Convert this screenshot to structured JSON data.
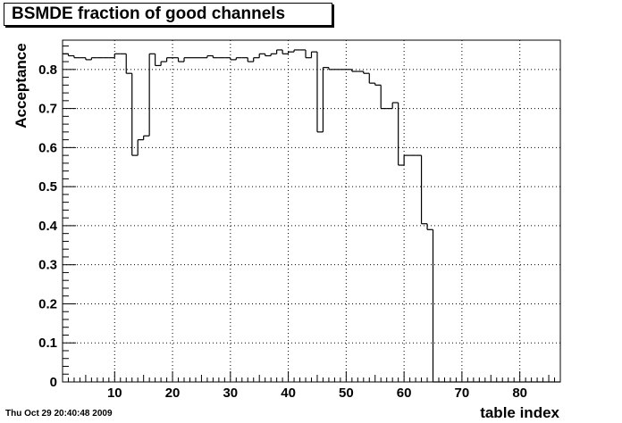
{
  "chart_data": {
    "type": "step",
    "title": "BSMDE fraction of good channels",
    "xlabel": "table index",
    "ylabel": "Acceptance",
    "xlim": [
      1,
      87
    ],
    "ylim": [
      0,
      0.875
    ],
    "xticks": [
      10,
      20,
      30,
      40,
      50,
      60,
      70,
      80
    ],
    "yticks": [
      0,
      0.1,
      0.2,
      0.3,
      0.4,
      0.5,
      0.6,
      0.7,
      0.8
    ],
    "ytick_labels": [
      "0",
      "0.1",
      "0.2",
      "0.3",
      "0.4",
      "0.5",
      "0.6",
      "0.7",
      "0.8"
    ],
    "grid": true,
    "bins": [
      {
        "x": 1,
        "y": 0.84
      },
      {
        "x": 2,
        "y": 0.835
      },
      {
        "x": 3,
        "y": 0.83
      },
      {
        "x": 4,
        "y": 0.83
      },
      {
        "x": 5,
        "y": 0.825
      },
      {
        "x": 6,
        "y": 0.83
      },
      {
        "x": 7,
        "y": 0.83
      },
      {
        "x": 8,
        "y": 0.83
      },
      {
        "x": 9,
        "y": 0.83
      },
      {
        "x": 10,
        "y": 0.84
      },
      {
        "x": 11,
        "y": 0.84
      },
      {
        "x": 12,
        "y": 0.79
      },
      {
        "x": 13,
        "y": 0.58
      },
      {
        "x": 14,
        "y": 0.62
      },
      {
        "x": 15,
        "y": 0.63
      },
      {
        "x": 16,
        "y": 0.84
      },
      {
        "x": 17,
        "y": 0.81
      },
      {
        "x": 18,
        "y": 0.82
      },
      {
        "x": 19,
        "y": 0.83
      },
      {
        "x": 20,
        "y": 0.83
      },
      {
        "x": 21,
        "y": 0.82
      },
      {
        "x": 22,
        "y": 0.83
      },
      {
        "x": 23,
        "y": 0.83
      },
      {
        "x": 24,
        "y": 0.83
      },
      {
        "x": 25,
        "y": 0.83
      },
      {
        "x": 26,
        "y": 0.835
      },
      {
        "x": 27,
        "y": 0.83
      },
      {
        "x": 28,
        "y": 0.83
      },
      {
        "x": 29,
        "y": 0.83
      },
      {
        "x": 30,
        "y": 0.825
      },
      {
        "x": 31,
        "y": 0.83
      },
      {
        "x": 32,
        "y": 0.83
      },
      {
        "x": 33,
        "y": 0.82
      },
      {
        "x": 34,
        "y": 0.83
      },
      {
        "x": 35,
        "y": 0.84
      },
      {
        "x": 36,
        "y": 0.835
      },
      {
        "x": 37,
        "y": 0.84
      },
      {
        "x": 38,
        "y": 0.85
      },
      {
        "x": 39,
        "y": 0.84
      },
      {
        "x": 40,
        "y": 0.845
      },
      {
        "x": 41,
        "y": 0.85
      },
      {
        "x": 42,
        "y": 0.85
      },
      {
        "x": 43,
        "y": 0.83
      },
      {
        "x": 44,
        "y": 0.845
      },
      {
        "x": 45,
        "y": 0.64
      },
      {
        "x": 46,
        "y": 0.805
      },
      {
        "x": 47,
        "y": 0.8
      },
      {
        "x": 48,
        "y": 0.8
      },
      {
        "x": 49,
        "y": 0.8
      },
      {
        "x": 50,
        "y": 0.8
      },
      {
        "x": 51,
        "y": 0.795
      },
      {
        "x": 52,
        "y": 0.795
      },
      {
        "x": 53,
        "y": 0.79
      },
      {
        "x": 54,
        "y": 0.765
      },
      {
        "x": 55,
        "y": 0.76
      },
      {
        "x": 56,
        "y": 0.7
      },
      {
        "x": 57,
        "y": 0.7
      },
      {
        "x": 58,
        "y": 0.715
      },
      {
        "x": 59,
        "y": 0.555
      },
      {
        "x": 60,
        "y": 0.58
      },
      {
        "x": 61,
        "y": 0.58
      },
      {
        "x": 62,
        "y": 0.58
      },
      {
        "x": 63,
        "y": 0.405
      },
      {
        "x": 64,
        "y": 0.39
      },
      {
        "x": 65,
        "y": 0
      },
      {
        "x": 66,
        "y": 0
      },
      {
        "x": 67,
        "y": 0
      },
      {
        "x": 68,
        "y": 0
      },
      {
        "x": 69,
        "y": 0
      },
      {
        "x": 70,
        "y": 0
      },
      {
        "x": 71,
        "y": 0
      },
      {
        "x": 72,
        "y": 0
      },
      {
        "x": 73,
        "y": 0
      },
      {
        "x": 74,
        "y": 0
      },
      {
        "x": 75,
        "y": 0
      },
      {
        "x": 76,
        "y": 0
      },
      {
        "x": 77,
        "y": 0
      },
      {
        "x": 78,
        "y": 0
      },
      {
        "x": 79,
        "y": 0
      },
      {
        "x": 80,
        "y": 0
      },
      {
        "x": 81,
        "y": 0
      },
      {
        "x": 82,
        "y": 0
      },
      {
        "x": 83,
        "y": 0
      },
      {
        "x": 84,
        "y": 0
      },
      {
        "x": 85,
        "y": 0
      },
      {
        "x": 86,
        "y": 0
      }
    ]
  },
  "timestamp": "Thu Oct 29 20:40:48 2009",
  "colors": {
    "line": "#000000",
    "grid": "#000000",
    "background": "#ffffff"
  }
}
